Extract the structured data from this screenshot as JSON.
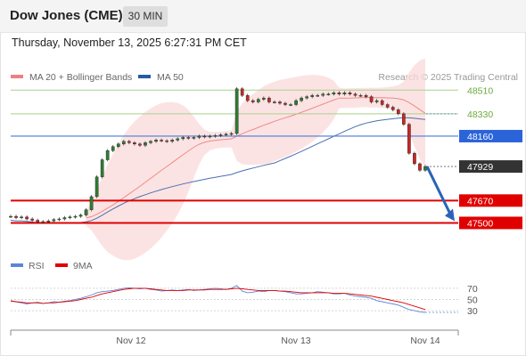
{
  "header": {
    "title": "Dow Jones (CME)",
    "timeframe": "30 MIN",
    "datetime": "Thursday, November 13, 2025 6:27:31 PM CET"
  },
  "legend": {
    "items": [
      {
        "label": "MA 20 + Bollinger Bands",
        "color": "#f08080"
      },
      {
        "label": "MA 50",
        "color": "#2a5aa0"
      }
    ],
    "credit": "Research © 2025 Trading Central"
  },
  "chart_data": [
    {
      "type": "line",
      "name": "price",
      "y_range": [
        47300,
        48620
      ],
      "last_price": 47929,
      "levels": [
        {
          "value": 48510,
          "label": "48510",
          "style": "green"
        },
        {
          "value": 48330,
          "label": "48330",
          "style": "green"
        },
        {
          "value": 48160,
          "label": "48160",
          "style": "blue"
        },
        {
          "value": 47929,
          "label": "47929",
          "style": "current"
        },
        {
          "value": 47670,
          "label": "47670",
          "style": "red"
        },
        {
          "value": 47500,
          "label": "47500",
          "style": "red"
        }
      ],
      "x_labels": [
        "Nov 12",
        "Nov 13",
        "Nov 14"
      ],
      "forecast": {
        "from": 47929,
        "to": 47500
      },
      "close_series": [
        47550,
        47540,
        47545,
        47530,
        47520,
        47505,
        47510,
        47515,
        47525,
        47530,
        47540,
        47545,
        47550,
        47560,
        47600,
        47700,
        47850,
        47980,
        48050,
        48080,
        48100,
        48120,
        48110,
        48100,
        48090,
        48110,
        48120,
        48130,
        48125,
        48120,
        48130,
        48140,
        48150,
        48145,
        48150,
        48160,
        48155,
        48160,
        48165,
        48170,
        48175,
        48180,
        48520,
        48470,
        48430,
        48420,
        48440,
        48450,
        48420,
        48420,
        48410,
        48400,
        48400,
        48430,
        48450,
        48460,
        48470,
        48470,
        48480,
        48480,
        48490,
        48480,
        48490,
        48480,
        48470,
        48470,
        48460,
        48420,
        48430,
        48400,
        48380,
        48360,
        48330,
        48250,
        48030,
        47950,
        47900,
        47929
      ]
    },
    {
      "type": "line",
      "name": "RSI",
      "legend": [
        {
          "label": "RSI",
          "color": "#5b86d6"
        },
        {
          "label": "9MA",
          "color": "#e00000"
        }
      ],
      "y_ticks": [
        70,
        50,
        30
      ],
      "rsi": [
        48,
        46,
        44,
        42,
        44,
        45,
        43,
        44,
        46,
        45,
        47,
        48,
        50,
        52,
        55,
        58,
        62,
        64,
        65,
        66,
        68,
        70,
        71,
        70,
        69,
        70,
        68,
        67,
        65,
        66,
        67,
        66,
        67,
        68,
        66,
        67,
        68,
        69,
        70,
        69,
        68,
        70,
        75,
        65,
        62,
        63,
        65,
        64,
        66,
        66,
        65,
        64,
        62,
        60,
        60,
        61,
        62,
        64,
        63,
        62,
        60,
        60,
        61,
        58,
        56,
        55,
        54,
        52,
        48,
        46,
        44,
        42,
        40,
        36,
        32,
        30,
        28,
        27
      ],
      "ma9": [
        47,
        46,
        45,
        44,
        44,
        44,
        43,
        44,
        44,
        45,
        46,
        47,
        48,
        50,
        52,
        54,
        57,
        60,
        62,
        64,
        66,
        68,
        69,
        70,
        70,
        70,
        69,
        68,
        67,
        66,
        66,
        66,
        66,
        67,
        67,
        67,
        67,
        68,
        68,
        68,
        68,
        69,
        70,
        69,
        68,
        67,
        66,
        66,
        66,
        66,
        65,
        65,
        64,
        63,
        62,
        62,
        62,
        62,
        62,
        62,
        61,
        61,
        61,
        60,
        59,
        58,
        57,
        56,
        54,
        52,
        50,
        48,
        46,
        44,
        41,
        38,
        35,
        32
      ]
    }
  ]
}
